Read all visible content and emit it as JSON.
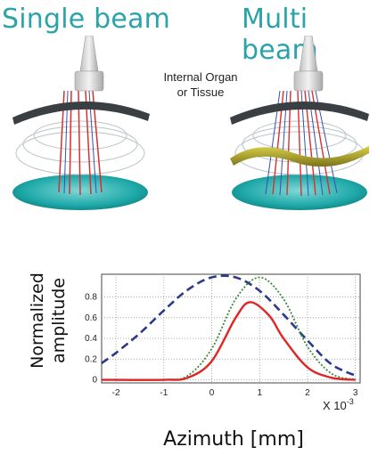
{
  "titles": {
    "left": "Single beam",
    "right": "Multi beam"
  },
  "annotation": {
    "line1": "Internal Organ",
    "line2": "or Tissue"
  },
  "chart_data": {
    "type": "line",
    "ylabel_line1": "Normalized",
    "ylabel_line2": "amplitude",
    "xlabel": "Azimuth [mm]",
    "x_scale_note": "X 10",
    "x_scale_exp": "-3",
    "xlim": [
      -2.3,
      3.1
    ],
    "ylim": [
      -0.03,
      1.02
    ],
    "xticks": [
      "-2",
      "-1",
      "0",
      "1",
      "2",
      "3"
    ],
    "xtick_values": [
      -2,
      -1,
      0,
      1,
      2,
      3
    ],
    "yticks": [
      "0",
      "0.2",
      "0.4",
      "0.6",
      "0.8"
    ],
    "ytick_values": [
      0,
      0.2,
      0.4,
      0.6,
      0.8
    ],
    "grid": true,
    "series": [
      {
        "style": "dashed",
        "color": "#2d3a8c",
        "x": [
          -2.3,
          -2.0,
          -1.5,
          -1.0,
          -0.5,
          0.0,
          0.5,
          1.0,
          1.5,
          2.0,
          2.5,
          3.0
        ],
        "y": [
          0.16,
          0.26,
          0.45,
          0.67,
          0.87,
          0.99,
          0.99,
          0.86,
          0.63,
          0.38,
          0.15,
          0.04
        ]
      },
      {
        "style": "dotted",
        "color": "#3a8a3a",
        "x": [
          -2.3,
          -1.0,
          -0.5,
          0.0,
          0.5,
          1.0,
          1.5,
          2.0,
          2.5,
          3.0
        ],
        "y": [
          0.0,
          0.0,
          0.04,
          0.3,
          0.78,
          0.99,
          0.78,
          0.32,
          0.06,
          0.0
        ]
      },
      {
        "style": "solid",
        "color": "#e02525",
        "x": [
          -2.3,
          -1.0,
          -0.5,
          0.0,
          0.5,
          0.8,
          1.2,
          1.5,
          2.0,
          2.5,
          3.0
        ],
        "y": [
          0.0,
          0.0,
          0.02,
          0.18,
          0.6,
          0.75,
          0.62,
          0.4,
          0.12,
          0.02,
          0.0
        ]
      }
    ]
  },
  "colors": {
    "title": "#2aa3a9",
    "disk": "#1fa6a8",
    "tissue": "#3a3f44",
    "organ": "#9a8f1e"
  }
}
